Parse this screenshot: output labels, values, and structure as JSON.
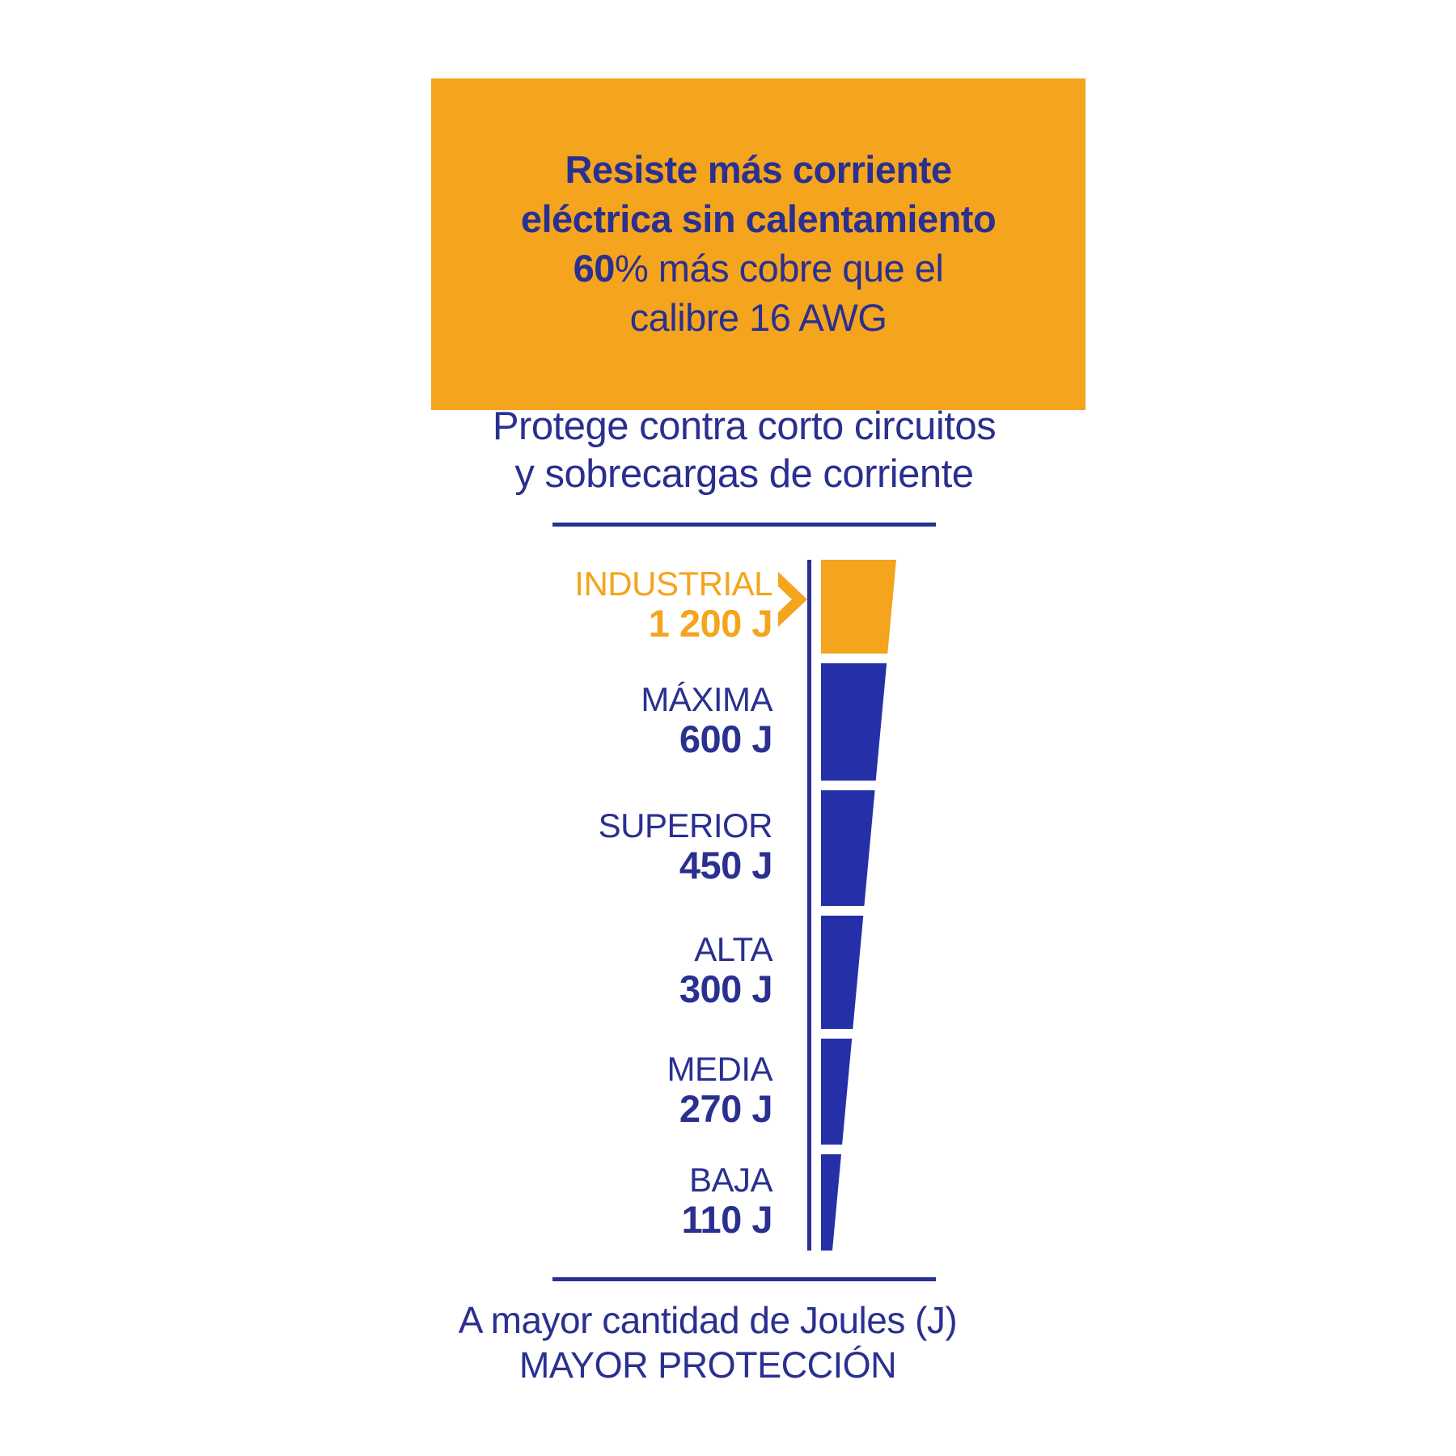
{
  "banner": {
    "line1": "Resiste más corriente",
    "line2": "eléctrica sin calentamiento",
    "line3_bold": "60",
    "line3_rest": "% más cobre que el",
    "line4": "calibre 16 AWG"
  },
  "subtitle": {
    "line1": "Protege contra corto circuitos",
    "line2": "y sobrecargas de corriente"
  },
  "chart_data": {
    "type": "bar",
    "subtype": "vertical-funnel",
    "title": "Protege contra corto circuitos y sobrecargas de corriente",
    "unit": "J",
    "categories": [
      "INDUSTRIAL",
      "MÁXIMA",
      "SUPERIOR",
      "ALTA",
      "MEDIA",
      "BAJA"
    ],
    "values": [
      1200,
      600,
      450,
      300,
      270,
      110
    ],
    "value_labels": [
      "1 200 J",
      "600 J",
      "450 J",
      "300 J",
      "270 J",
      "110 J"
    ],
    "highlight_index": 0,
    "legend_position": "left",
    "note": "A mayor cantidad de Joules (J) MAYOR PROTECCIÓN"
  },
  "footer": {
    "line1": "A mayor cantidad de Joules (J)",
    "line2": "MAYOR PROTECCIÓN"
  },
  "colors": {
    "orange": "#F5A41D",
    "navy_text": "#2A308F",
    "funnel_blue": "#2530A8",
    "line_navy": "#283193",
    "background": "#FFFFFF"
  }
}
